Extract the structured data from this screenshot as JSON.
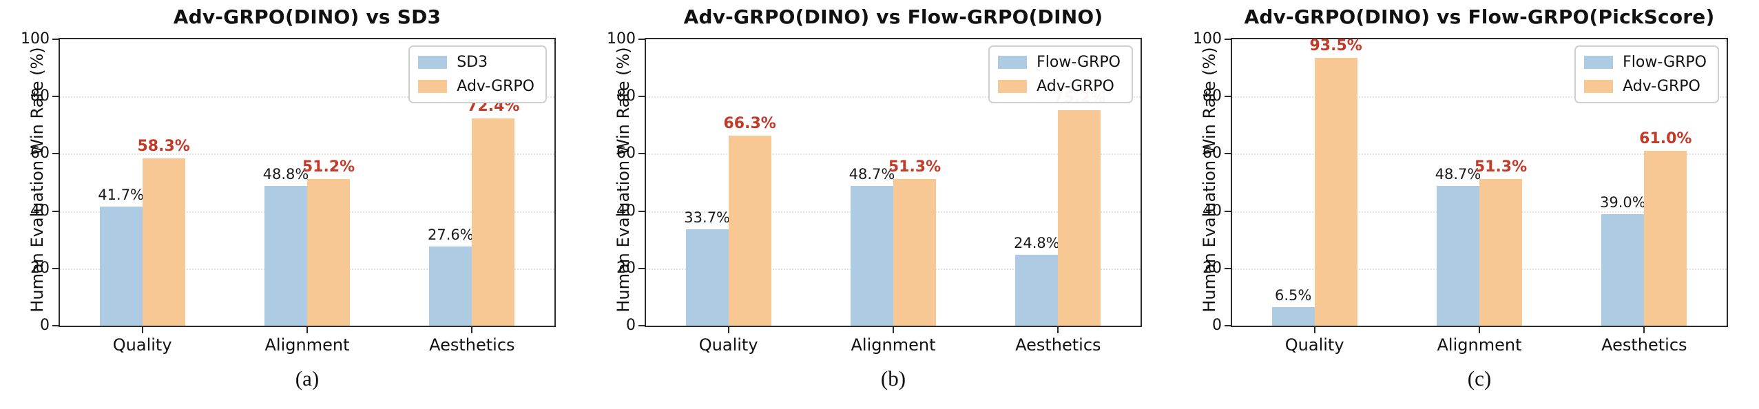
{
  "figure": {
    "ylabel": "Human Evaluation Win Rate (%)",
    "colors": {
      "series1_fill": "#adcbe3",
      "series2_fill": "#f7c794",
      "label1_text": "#1a1a1a",
      "label2_text": "#c23a28",
      "grid": "#e3e3e3",
      "spine": "#2b2b2b"
    }
  },
  "chart_data": [
    {
      "type": "bar",
      "title": "Adv-GRPO(DINO) vs SD3",
      "caption": "(a)",
      "ylabel": "Human Evaluation Win Rate (%)",
      "categories": [
        "Quality",
        "Alignment",
        "Aesthetics"
      ],
      "series": [
        {
          "name": "SD3",
          "values": [
            41.7,
            48.8,
            27.6
          ],
          "labels": [
            "41.7%",
            "48.8%",
            "27.6%"
          ]
        },
        {
          "name": "Adv-GRPO",
          "values": [
            58.3,
            51.2,
            72.4
          ],
          "labels": [
            "58.3%",
            "51.2%",
            "72.4%"
          ]
        }
      ],
      "ylim": [
        0,
        100
      ],
      "yticks": [
        0,
        20,
        40,
        60,
        80,
        100
      ],
      "grid": true,
      "legend_position": "upper right"
    },
    {
      "type": "bar",
      "title": "Adv-GRPO(DINO) vs Flow-GRPO(DINO)",
      "caption": "(b)",
      "ylabel": "Human Evaluation Win Rate (%)",
      "categories": [
        "Quality",
        "Alignment",
        "Aesthetics"
      ],
      "series": [
        {
          "name": "Flow-GRPO",
          "values": [
            33.7,
            48.7,
            24.8
          ],
          "labels": [
            "33.7%",
            "48.7%",
            "24.8%"
          ]
        },
        {
          "name": "Adv-GRPO",
          "values": [
            66.3,
            51.3,
            75.2
          ],
          "labels": [
            "66.3%",
            "51.3%",
            "75.2%"
          ]
        }
      ],
      "ylim": [
        0,
        100
      ],
      "yticks": [
        0,
        20,
        40,
        60,
        80,
        100
      ],
      "grid": true,
      "legend_position": "upper right"
    },
    {
      "type": "bar",
      "title": "Adv-GRPO(DINO) vs Flow-GRPO(PickScore)",
      "caption": "(c)",
      "ylabel": "Human Evaluation Win Rate (%)",
      "categories": [
        "Quality",
        "Alignment",
        "Aesthetics"
      ],
      "series": [
        {
          "name": "Flow-GRPO",
          "values": [
            6.5,
            48.7,
            39.0
          ],
          "labels": [
            "6.5%",
            "48.7%",
            "39.0%"
          ]
        },
        {
          "name": "Adv-GRPO",
          "values": [
            93.5,
            51.3,
            61.0
          ],
          "labels": [
            "93.5%",
            "51.3%",
            "61.0%"
          ]
        }
      ],
      "ylim": [
        0,
        100
      ],
      "yticks": [
        0,
        20,
        40,
        60,
        80,
        100
      ],
      "grid": true,
      "legend_position": "upper right"
    }
  ]
}
